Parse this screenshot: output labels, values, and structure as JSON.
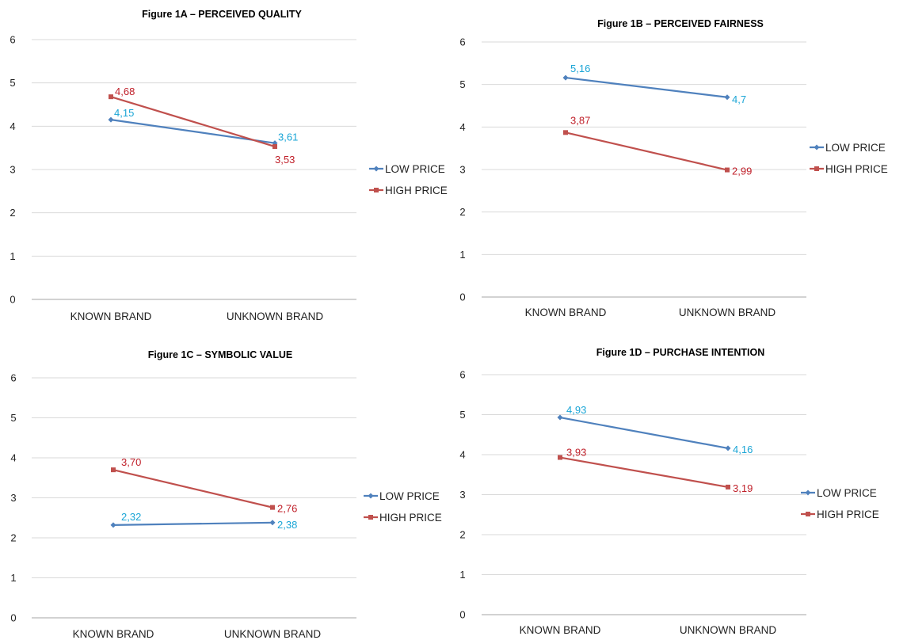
{
  "chart_data": [
    {
      "type": "line",
      "title": "Figure 1A – PERCEIVED QUALITY",
      "categories": [
        "KNOWN BRAND",
        "UNKNOWN BRAND"
      ],
      "series": [
        {
          "name": "LOW PRICE",
          "values": [
            4.15,
            3.61
          ],
          "labels": [
            "4,15",
            "3,61"
          ],
          "color": "#4f81bd",
          "label_color": "#1aa5d6",
          "marker": "diamond"
        },
        {
          "name": "HIGH PRICE",
          "values": [
            4.68,
            3.53
          ],
          "labels": [
            "4,68",
            "3,53"
          ],
          "color": "#c0504d",
          "label_color": "#c0202a",
          "marker": "square"
        }
      ],
      "y_ticks": [
        "0",
        "1",
        "2",
        "3",
        "4",
        "5",
        "6"
      ],
      "ylim": [
        0,
        6
      ],
      "grid": true,
      "legend": "right"
    },
    {
      "type": "line",
      "title": "Figure 1B – PERCEIVED FAIRNESS",
      "categories": [
        "KNOWN BRAND",
        "UNKNOWN BRAND"
      ],
      "series": [
        {
          "name": "LOW PRICE",
          "values": [
            5.16,
            4.7
          ],
          "labels": [
            "5,16",
            "4,7"
          ],
          "color": "#4f81bd",
          "label_color": "#1aa5d6",
          "marker": "diamond"
        },
        {
          "name": "HIGH PRICE",
          "values": [
            3.87,
            2.99
          ],
          "labels": [
            "3,87",
            "2,99"
          ],
          "color": "#c0504d",
          "label_color": "#c0202a",
          "marker": "square"
        }
      ],
      "y_ticks": [
        "0",
        "1",
        "2",
        "3",
        "4",
        "5",
        "6"
      ],
      "ylim": [
        0,
        6
      ],
      "grid": true,
      "legend": "right"
    },
    {
      "type": "line",
      "title": "Figure 1C – SYMBOLIC VALUE",
      "categories": [
        "KNOWN BRAND",
        "UNKNOWN BRAND"
      ],
      "series": [
        {
          "name": "LOW PRICE",
          "values": [
            2.32,
            2.38
          ],
          "labels": [
            "2,32",
            "2,38"
          ],
          "color": "#4f81bd",
          "label_color": "#1aa5d6",
          "marker": "diamond"
        },
        {
          "name": "HIGH PRICE",
          "values": [
            3.7,
            2.76
          ],
          "labels": [
            "3,70",
            "2,76"
          ],
          "color": "#c0504d",
          "label_color": "#c0202a",
          "marker": "square"
        }
      ],
      "y_ticks": [
        "0",
        "1",
        "2",
        "3",
        "4",
        "5",
        "6"
      ],
      "ylim": [
        0,
        6
      ],
      "grid": true,
      "legend": "right"
    },
    {
      "type": "line",
      "title": "Figure 1D – PURCHASE INTENTION",
      "categories": [
        "KNOWN BRAND",
        "UNKNOWN BRAND"
      ],
      "series": [
        {
          "name": "LOW PRICE",
          "values": [
            4.93,
            4.16
          ],
          "labels": [
            "4,93",
            "4,16"
          ],
          "color": "#4f81bd",
          "label_color": "#1aa5d6",
          "marker": "diamond"
        },
        {
          "name": "HIGH PRICE",
          "values": [
            3.93,
            3.19
          ],
          "labels": [
            "3,93",
            "3,19"
          ],
          "color": "#c0504d",
          "label_color": "#c0202a",
          "marker": "square"
        }
      ],
      "y_ticks": [
        "0",
        "1",
        "2",
        "3",
        "4",
        "5",
        "6"
      ],
      "ylim": [
        0,
        6
      ],
      "grid": true,
      "legend": "right"
    }
  ]
}
